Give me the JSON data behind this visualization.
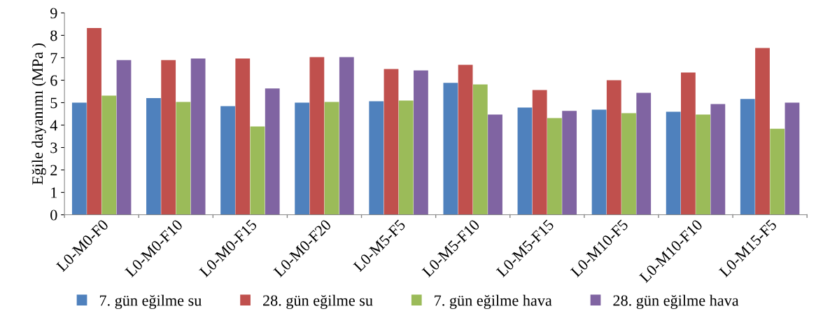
{
  "chart_data": {
    "type": "bar",
    "ylabel": "Eğile dayanımı (MPa )",
    "categories": [
      "L0-M0-F0",
      "L0-M0-F10",
      "L0-M0-F15",
      "L0-M0-F20",
      "L0-M5-F5",
      "L0-M5-F10",
      "L0-M5-F15",
      "L0-M10-F5",
      "L0-M10-F10",
      "L0-M15-F5"
    ],
    "series": [
      {
        "name": "7. gün eğilme su",
        "color": "#4f81bd",
        "values": [
          5.0,
          5.2,
          4.84,
          5.0,
          5.06,
          5.88,
          4.78,
          4.69,
          4.59,
          5.16
        ]
      },
      {
        "name": "28. gün eğilme su",
        "color": "#c0504d",
        "values": [
          8.33,
          6.9,
          6.97,
          7.03,
          6.5,
          6.69,
          5.56,
          6.0,
          6.34,
          7.44
        ]
      },
      {
        "name": "7. gün eğilme hava",
        "color": "#9bbb59",
        "values": [
          5.31,
          5.03,
          3.94,
          5.03,
          5.09,
          5.81,
          4.31,
          4.53,
          4.47,
          3.84
        ]
      },
      {
        "name": "28. gün eğilme hava",
        "color": "#8064a2",
        "values": [
          6.9,
          6.97,
          5.63,
          7.03,
          6.44,
          4.47,
          4.63,
          5.44,
          4.94,
          5.0
        ]
      }
    ],
    "ylim": [
      0,
      9
    ],
    "yticks": [
      0,
      1,
      2,
      3,
      4,
      5,
      6,
      7,
      8,
      9
    ],
    "grid": false,
    "legend": "bottom"
  }
}
